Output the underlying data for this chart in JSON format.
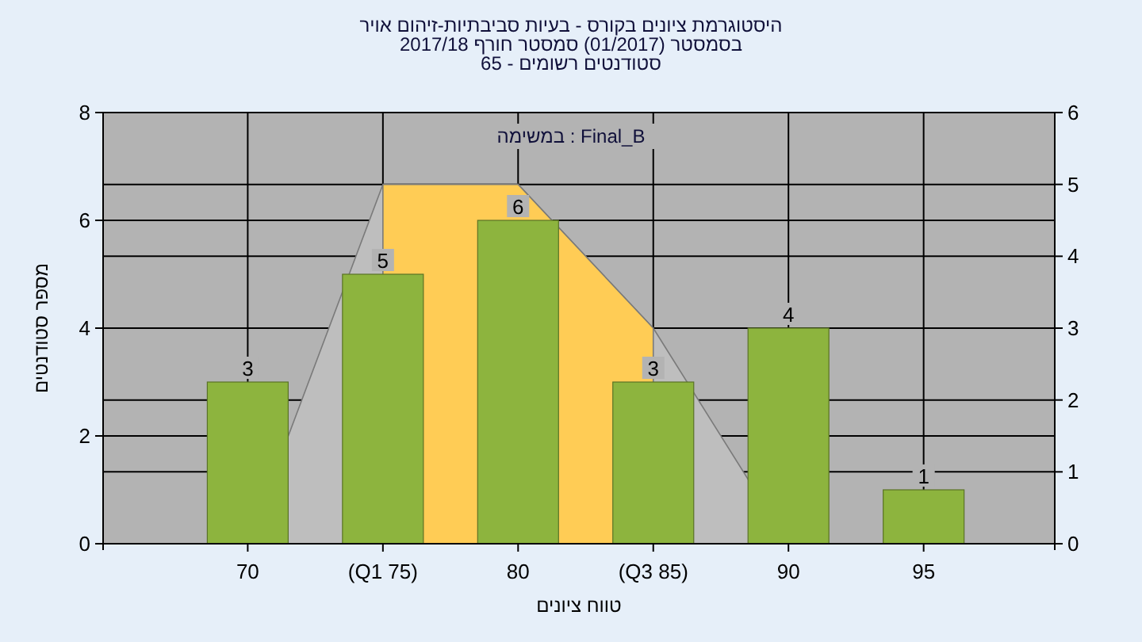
{
  "chart_data": {
    "type": "bar",
    "title": "היסטוגרמת ציונים בקורס - בעיות סביבתיות-זיהום אויר",
    "subtitle": "בסמסטר  (01/2017)  סמסטר חורף 2017/18",
    "xlabel": "טווח ציונים",
    "ylabel": "מספר סטודנטים",
    "categories": [
      "70",
      "(Q1 75)",
      "80",
      "(Q3 85)",
      "90",
      "95"
    ],
    "series": [
      {
        "type": "area",
        "axis": "y2",
        "color": "#bebebe",
        "values": [
          0,
          5,
          5,
          3,
          0,
          0
        ]
      },
      {
        "type": "area",
        "axis": "y2",
        "color": "#ffcc55",
        "values": [
          null,
          5,
          5,
          3,
          null,
          null
        ]
      },
      {
        "color": "#8db43e",
        "values": [
          3,
          5,
          6,
          3,
          4,
          1
        ],
        "value_labels": [
          "3",
          "5",
          "6",
          "3",
          "4",
          "1"
        ]
      }
    ],
    "ylim": [
      0,
      8
    ],
    "yticks": [
      0,
      2,
      4,
      6,
      8
    ],
    "y2lim": [
      0,
      6
    ],
    "y2ticks": [
      0,
      1,
      2,
      3,
      4,
      5,
      6
    ],
    "grid": true,
    "annotations": [
      "סטודנטים רשומים - 65",
      "במשימה : Final_B"
    ]
  }
}
